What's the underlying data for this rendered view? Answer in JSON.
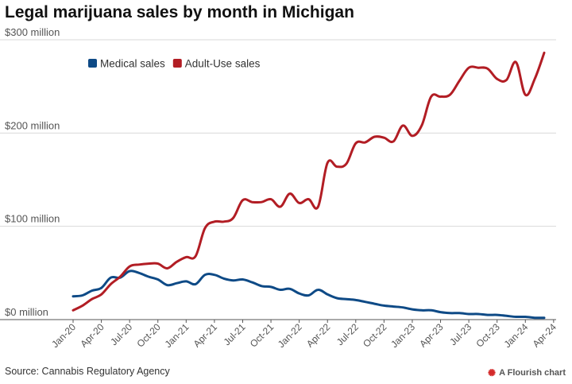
{
  "chart_data": {
    "type": "line",
    "title": "Legal marijuana sales by month in Michigan",
    "xlabel": "",
    "ylabel": "",
    "ylim": [
      0,
      300
    ],
    "yticks": [
      0,
      100,
      200,
      300
    ],
    "ytick_labels": [
      "$0 million",
      "$100 million",
      "$200 million",
      "$300 million"
    ],
    "xtick_labels": [
      "Jan-20",
      "Apr-20",
      "Jul-20",
      "Oct-20",
      "Jan-21",
      "Apr-21",
      "Jul-21",
      "Oct-21",
      "Jan-22",
      "Apr-22",
      "Jul-22",
      "Oct-22",
      "Jan-23",
      "Apr-23",
      "Jul-23",
      "Oct-23",
      "Jan-24",
      "Apr-24"
    ],
    "x": [
      "Jan-20",
      "Feb-20",
      "Mar-20",
      "Apr-20",
      "May-20",
      "Jun-20",
      "Jul-20",
      "Aug-20",
      "Sep-20",
      "Oct-20",
      "Nov-20",
      "Dec-20",
      "Jan-21",
      "Feb-21",
      "Mar-21",
      "Apr-21",
      "May-21",
      "Jun-21",
      "Jul-21",
      "Aug-21",
      "Sep-21",
      "Oct-21",
      "Nov-21",
      "Dec-21",
      "Jan-22",
      "Feb-22",
      "Mar-22",
      "Apr-22",
      "May-22",
      "Jun-22",
      "Jul-22",
      "Aug-22",
      "Sep-22",
      "Oct-22",
      "Nov-22",
      "Dec-22",
      "Jan-23",
      "Feb-23",
      "Mar-23",
      "Apr-23",
      "May-23",
      "Jun-23",
      "Jul-23",
      "Aug-23",
      "Sep-23",
      "Oct-23",
      "Nov-23",
      "Dec-23",
      "Jan-24",
      "Feb-24",
      "Mar-24"
    ],
    "series": [
      {
        "name": "Medical sales",
        "color": "#0e4a86",
        "values": [
          25,
          26,
          31,
          34,
          45,
          45,
          52,
          50,
          46,
          43,
          37,
          39,
          41,
          38,
          48,
          48,
          44,
          42,
          43,
          40,
          36,
          35,
          32,
          33,
          28,
          26,
          32,
          27,
          23,
          22,
          21,
          19,
          17,
          15,
          14,
          13,
          11,
          10,
          10,
          8,
          7,
          7,
          6,
          6,
          5,
          5,
          4,
          3,
          3,
          2,
          2
        ]
      },
      {
        "name": "Adult-Use sales",
        "color": "#b21d24",
        "values": [
          10,
          15,
          22,
          27,
          38,
          46,
          57,
          59,
          60,
          60,
          55,
          62,
          67,
          68,
          98,
          105,
          105,
          109,
          128,
          126,
          126,
          129,
          121,
          135,
          125,
          129,
          121,
          168,
          164,
          167,
          189,
          190,
          196,
          195,
          191,
          208,
          197,
          208,
          239,
          239,
          241,
          256,
          270,
          270,
          269,
          258,
          257,
          276,
          241,
          258,
          286
        ]
      }
    ],
    "legend": [
      {
        "label": "Medical sales",
        "color": "#0e4a86"
      },
      {
        "label": "Adult-Use sales",
        "color": "#b21d24"
      }
    ],
    "legend_position": "top-left",
    "grid": "horizontal",
    "source": "Source: Cannabis Regulatory Agency",
    "credit": "A Flourish chart"
  }
}
